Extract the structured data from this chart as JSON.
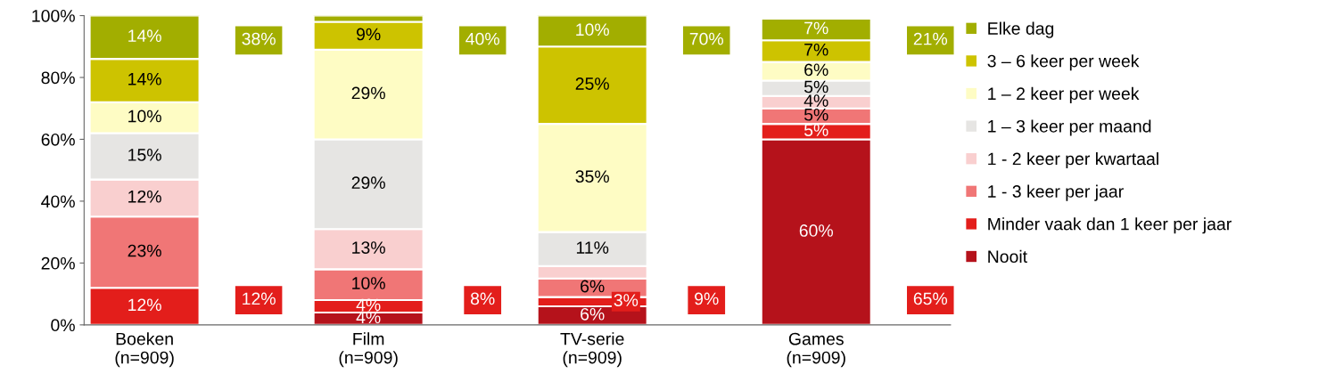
{
  "chart_data": {
    "type": "bar",
    "stacked": true,
    "categories": [
      "Boeken\n(n=909)",
      "Film\n(n=909)",
      "TV-serie\n(n=909)",
      "Games\n(n=909)"
    ],
    "series": [
      {
        "name": "Nooit",
        "color": "#b5121b",
        "values": [
          0,
          4,
          6,
          60
        ],
        "value_labels": [
          null,
          "4%",
          "6%",
          "60%"
        ]
      },
      {
        "name": "Minder vaak dan 1 keer per jaar",
        "color": "#e31e1b",
        "values": [
          12,
          4,
          3,
          5
        ],
        "value_labels": [
          "12%",
          "4%",
          "3%",
          "5%"
        ]
      },
      {
        "name": "1 - 3 keer per jaar",
        "color": "#f07676",
        "values": [
          23,
          10,
          6,
          5
        ],
        "value_labels": [
          "23%",
          "10%",
          "6%",
          "5%"
        ]
      },
      {
        "name": "1 - 2 keer per kwartaal",
        "color": "#f9cfcf",
        "values": [
          12,
          13,
          4,
          4
        ],
        "value_labels": [
          "12%",
          "13%",
          null,
          "4%"
        ]
      },
      {
        "name": "1 – 3 keer per maand",
        "color": "#e6e5e3",
        "values": [
          15,
          29,
          11,
          5
        ],
        "value_labels": [
          "15%",
          "29%",
          "11%",
          "5%"
        ]
      },
      {
        "name": "1 – 2 keer per week",
        "color": "#fefcc4",
        "values": [
          10,
          29,
          35,
          6
        ],
        "value_labels": [
          "10%",
          "29%",
          "35%",
          "6%"
        ]
      },
      {
        "name": "3 – 6 keer per week",
        "color": "#cdc300",
        "values": [
          14,
          9,
          25,
          7
        ],
        "value_labels": [
          "14%",
          "9%",
          "25%",
          "7%"
        ]
      },
      {
        "name": "Elke dag",
        "color": "#a2ae00",
        "values": [
          14,
          2,
          10,
          7
        ],
        "value_labels": [
          "14%",
          null,
          "10%",
          "7%"
        ]
      }
    ],
    "ylim": [
      0,
      100
    ],
    "yticks": [
      {
        "value": 0,
        "label": "0%"
      },
      {
        "value": 20,
        "label": "20%"
      },
      {
        "value": 40,
        "label": "40%"
      },
      {
        "value": 60,
        "label": "60%"
      },
      {
        "value": 80,
        "label": "80%"
      },
      {
        "value": 100,
        "label": "100%"
      }
    ],
    "annotations": [
      "38%",
      "12%",
      "40%",
      "8%",
      "70%",
      "9%",
      "21%",
      "65%"
    ],
    "legend": "right",
    "grid": false
  }
}
